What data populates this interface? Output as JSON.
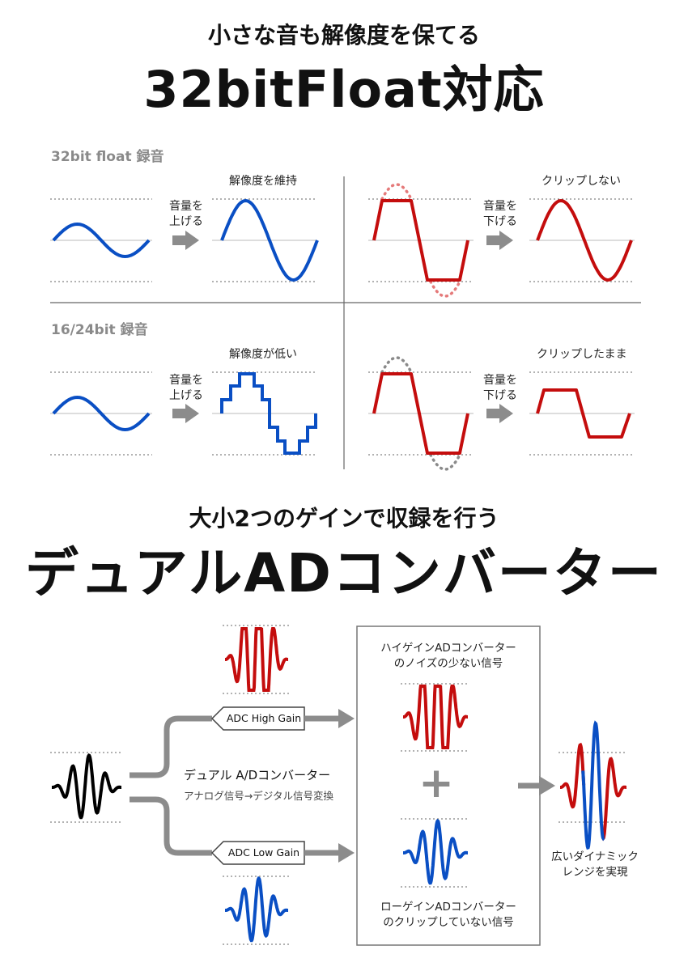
{
  "header": {
    "subtitle": "小さな音も解像度を保てる",
    "title": "32bitFloat対応"
  },
  "float_section": {
    "label": "32bit float 録音",
    "caption_left": "解像度を維持",
    "caption_right": "クリップしない",
    "arrow_left": "音量を\n上げる",
    "arrow_right": "音量を\n下げる"
  },
  "int_section": {
    "label": "16/24bit 録音",
    "caption_left": "解像度が低い",
    "caption_right": "クリップしたまま",
    "arrow_left": "音量を\n上げる",
    "arrow_right": "音量を\n下げる"
  },
  "dual": {
    "subtitle": "大小2つのゲインで収録を行う",
    "title": "デュアルADコンバーター",
    "adc_high": "ADC High Gain",
    "adc_low": "ADC Low Gain",
    "center_title": "デュアル A/Dコンバーター",
    "center_sub": "アナログ信号→デジタル信号変換",
    "box_top": "ハイゲインADコンバーター\nのノイズの少ない信号",
    "box_plus": "+",
    "box_bottom": "ローゲインADコンバーター\nのクリップしていない信号",
    "result": "広いダイナミック\nレンジを実現"
  },
  "colors": {
    "blue": "#0a4fc4",
    "red": "#c40d0d",
    "red_dotted": "#e57a7a",
    "gray_dotted": "#8a8a8a",
    "arrow": "#8c8c8c",
    "guide": "#666666"
  }
}
